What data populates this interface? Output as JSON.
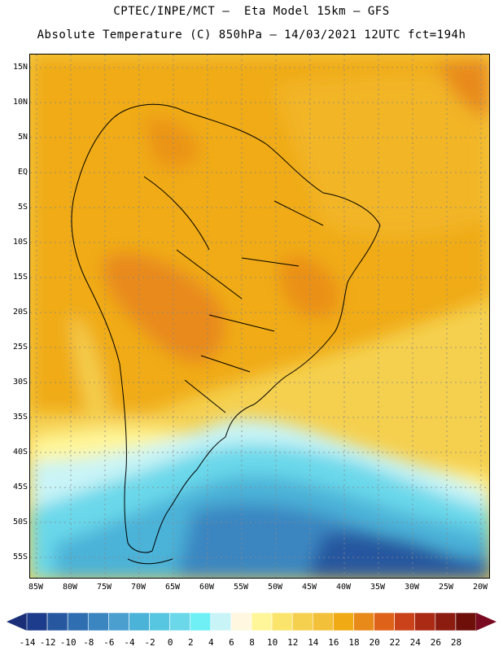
{
  "header": {
    "line1": "CPTEC/INPE/MCT –  Eta Model 15km – GFS",
    "line2": "Absolute Temperature (C) 850hPa – 14/03/2021 12UTC fct=194h"
  },
  "map": {
    "lat_labels": [
      "15N",
      "10N",
      "5N",
      "EQ",
      "5S",
      "10S",
      "15S",
      "20S",
      "25S",
      "30S",
      "35S",
      "40S",
      "45S",
      "50S",
      "55S"
    ],
    "lon_labels": [
      "85W",
      "80W",
      "75W",
      "70W",
      "65W",
      "60W",
      "55W",
      "50W",
      "45W",
      "40W",
      "35W",
      "30W",
      "25W",
      "20W"
    ],
    "lat_values": [
      15,
      10,
      5,
      0,
      -5,
      -10,
      -15,
      -20,
      -25,
      -30,
      -35,
      -40,
      -45,
      -50,
      -55
    ],
    "lon_values": [
      -85,
      -80,
      -75,
      -70,
      -65,
      -60,
      -55,
      -50,
      -45,
      -40,
      -35,
      -30,
      -25,
      -20
    ]
  },
  "colorbar": {
    "labels": [
      "-14",
      "-12",
      "-10",
      "-8",
      "-6",
      "-4",
      "-2",
      "0",
      "2",
      "4",
      "6",
      "8",
      "10",
      "12",
      "14",
      "16",
      "18",
      "20",
      "22",
      "24",
      "26",
      "28"
    ],
    "colors": [
      "#1d3c8c",
      "#26579f",
      "#2f6eb0",
      "#3b86c1",
      "#4b9fcf",
      "#4bb2d8",
      "#57c6e0",
      "#6bd8ea",
      "#6ff0f5",
      "#c9f4f7",
      "#fff7df",
      "#fff69a",
      "#fbe46b",
      "#f5d04f",
      "#f3c03a",
      "#f0ab14",
      "#e88a1a",
      "#de621a",
      "#c9421a",
      "#ab2a14",
      "#8c1c10",
      "#6e0f0a"
    ],
    "under_color": "#1a2f78",
    "over_color": "#7a0a20"
  }
}
